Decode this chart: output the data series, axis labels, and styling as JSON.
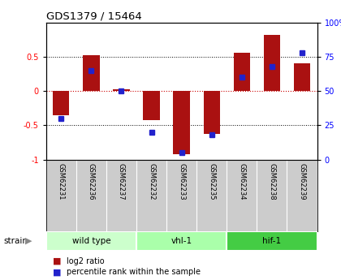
{
  "title": "GDS1379 / 15464",
  "samples": [
    "GSM62231",
    "GSM62236",
    "GSM62237",
    "GSM62232",
    "GSM62233",
    "GSM62235",
    "GSM62234",
    "GSM62238",
    "GSM62239"
  ],
  "log2_ratio": [
    -0.35,
    0.52,
    0.02,
    -0.43,
    -0.92,
    -0.62,
    0.56,
    0.82,
    0.4
  ],
  "percentile_rank": [
    30,
    65,
    50,
    20,
    5,
    18,
    60,
    68,
    78
  ],
  "groups": [
    {
      "label": "wild type",
      "start": 0,
      "end": 3,
      "color": "#ccffcc"
    },
    {
      "label": "vhl-1",
      "start": 3,
      "end": 6,
      "color": "#aaffaa"
    },
    {
      "label": "hif-1",
      "start": 6,
      "end": 9,
      "color": "#44cc44"
    }
  ],
  "ylim": [
    -1,
    1
  ],
  "yticks_left": [
    -1,
    -0.5,
    0,
    0.5
  ],
  "yticks_right": [
    0,
    25,
    50,
    75,
    100
  ],
  "bar_color": "#aa1111",
  "dot_color": "#2222cc",
  "zero_line_color": "#cc0000",
  "legend_red_label": "log2 ratio",
  "legend_blue_label": "percentile rank within the sample",
  "strain_label": "strain"
}
